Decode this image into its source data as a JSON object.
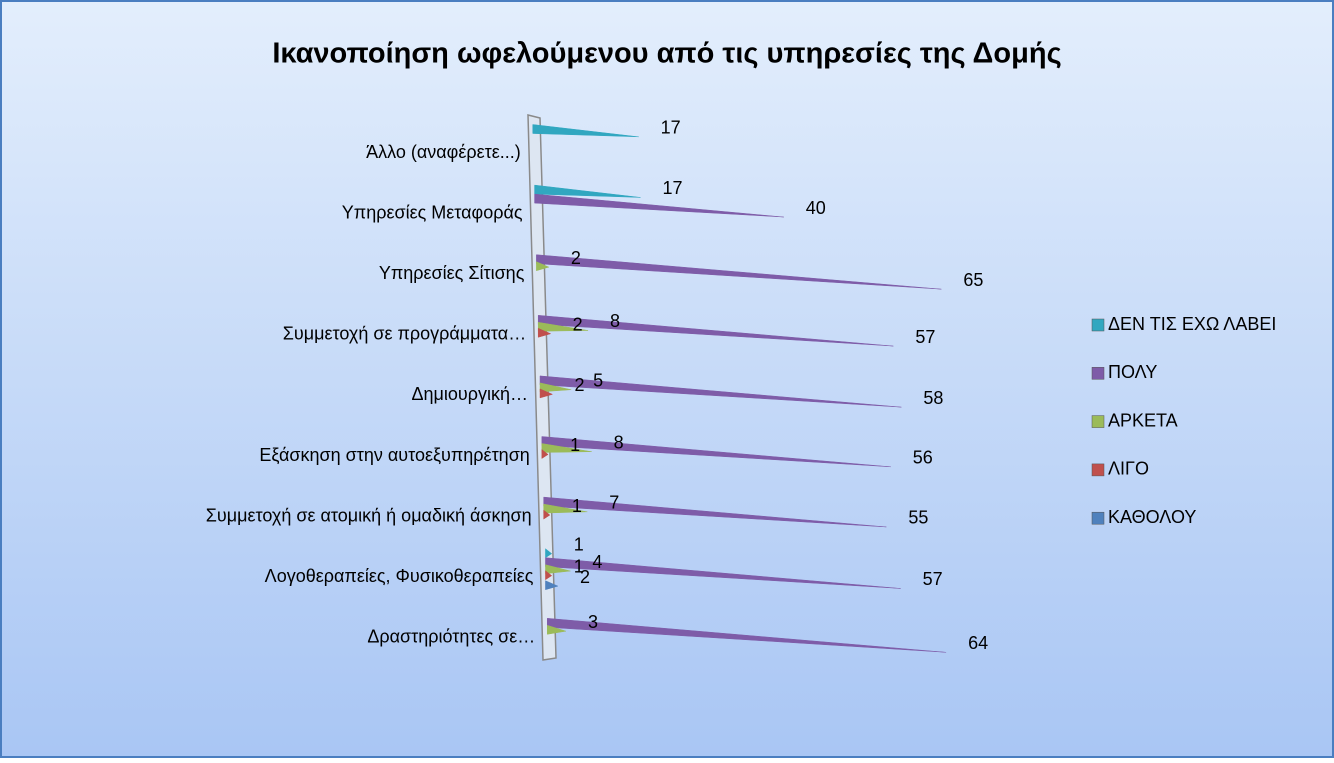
{
  "chart_data": {
    "type": "bar3d_cone",
    "title": "Ικανοποίηση ωφελούμενου από τις υπηρεσίες της Δομής",
    "categories": [
      "Άλλο (αναφέρετε...)",
      "Υπηρεσίες Μεταφοράς",
      "Υπηρεσίες Σίτισης",
      "Συμμετοχή σε προγράμματα…",
      "Δημιουργική…",
      "Εξάσκηση στην αυτοεξυπηρέτηση",
      "Συμμετοχή σε ατομική ή ομαδική άσκηση",
      "Λογοθεραπείες, Φυσικοθεραπείες",
      "Δραστηριότητες σε…"
    ],
    "series": [
      {
        "name": "ΔΕΝ ΤΙΣ ΕΧΩ ΛΑΒΕΙ",
        "color": "#31a7c0",
        "values": [
          17,
          17,
          null,
          null,
          null,
          null,
          null,
          1,
          null
        ]
      },
      {
        "name": "ΠΟΛΥ",
        "color": "#7e5ca8",
        "values": [
          null,
          40,
          65,
          57,
          58,
          56,
          55,
          57,
          64
        ]
      },
      {
        "name": "ΑΡΚΕΤΑ",
        "color": "#9bbb59",
        "values": [
          null,
          null,
          2,
          8,
          5,
          8,
          7,
          4,
          3
        ]
      },
      {
        "name": "ΛΙΓΟ",
        "color": "#c0504d",
        "values": [
          null,
          null,
          null,
          2,
          2,
          1,
          1,
          1,
          null
        ]
      },
      {
        "name": "ΚΑΘΟΛΟΥ",
        "color": "#4f81bd",
        "values": [
          null,
          null,
          null,
          null,
          null,
          null,
          null,
          2,
          null
        ]
      }
    ],
    "legend": "right"
  }
}
